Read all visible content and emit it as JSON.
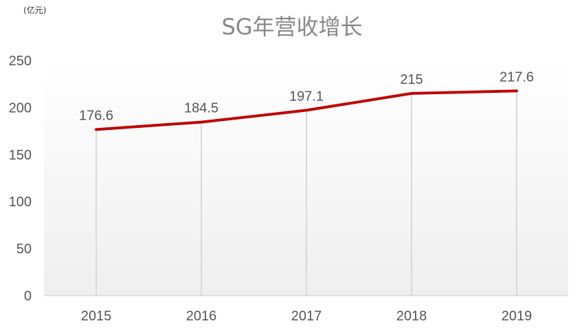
{
  "chart_data": {
    "type": "line",
    "title": "SG年营收增长",
    "unit_label": "(亿元)",
    "xlabel": "",
    "ylabel": "",
    "categories": [
      "2015",
      "2016",
      "2017",
      "2018",
      "2019"
    ],
    "series": [
      {
        "values": [
          176.6,
          184.5,
          197.1,
          215,
          217.6
        ],
        "data_labels": [
          "176.6",
          "184.5",
          "197.1",
          "215",
          "217.6"
        ]
      }
    ],
    "ylim": [
      0,
      250
    ],
    "yticks": [
      0,
      50,
      100,
      150,
      200,
      250
    ],
    "ytick_labels": [
      "0",
      "50",
      "100",
      "150",
      "200",
      "250"
    ],
    "grid": "vertical drop lines at each category",
    "legend": "none",
    "colors": {
      "line": "#c00000",
      "title": "#888888",
      "dropline": "#d9d9d9",
      "axis": "#cccccc",
      "text": "#555555"
    }
  }
}
